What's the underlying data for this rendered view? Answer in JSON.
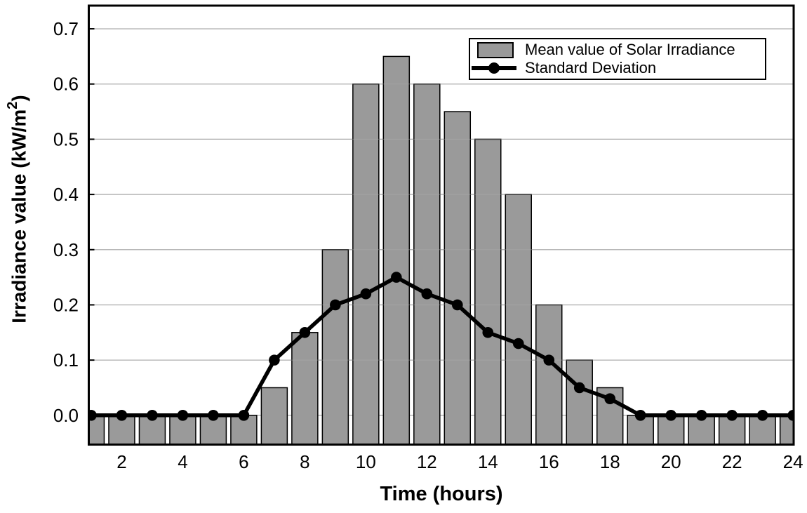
{
  "chart_data": {
    "type": "bar",
    "title": "",
    "xlabel": "Time (hours)",
    "ylabel": "Irradiance value (kW/m2)",
    "ylabel_parts": {
      "prefix": "Irradiance value (kW/m",
      "superscript": "2",
      "suffix": ")"
    },
    "x": [
      1,
      2,
      3,
      4,
      5,
      6,
      7,
      8,
      9,
      10,
      11,
      12,
      13,
      14,
      15,
      16,
      17,
      18,
      19,
      20,
      21,
      22,
      23,
      24
    ],
    "series": [
      {
        "name": "Mean value of Solar Irradiance",
        "type": "bar",
        "values": [
          0,
          0,
          0,
          0,
          0,
          0,
          0.05,
          0.15,
          0.3,
          0.6,
          0.65,
          0.6,
          0.55,
          0.5,
          0.4,
          0.2,
          0.1,
          0.05,
          0,
          0,
          0,
          0,
          0,
          0
        ]
      },
      {
        "name": "Standard Deviation",
        "type": "line",
        "values": [
          0,
          0,
          0,
          0,
          0,
          0,
          0.1,
          0.15,
          0.2,
          0.22,
          0.25,
          0.22,
          0.2,
          0.15,
          0.13,
          0.1,
          0.05,
          0.03,
          0,
          0,
          0,
          0,
          0,
          0
        ]
      }
    ],
    "xticks": [
      2,
      4,
      6,
      8,
      10,
      12,
      14,
      16,
      18,
      20,
      22,
      24
    ],
    "ytick_labels": [
      "0.0",
      "0.1",
      "0.2",
      "0.3",
      "0.4",
      "0.5",
      "0.6",
      "0.7"
    ],
    "xlim": [
      0.92,
      24.02
    ],
    "ylim": [
      -0.053,
      0.742
    ],
    "grid": "horizontal",
    "legend_position": "top-right",
    "colors": {
      "bar_fill": "#9a9a9a",
      "bar_edge": "#000000",
      "line": "#000000",
      "marker": "#000000",
      "grid": "#b0b0b0",
      "axis": "#000000",
      "text": "#000000",
      "background": "#ffffff"
    }
  }
}
